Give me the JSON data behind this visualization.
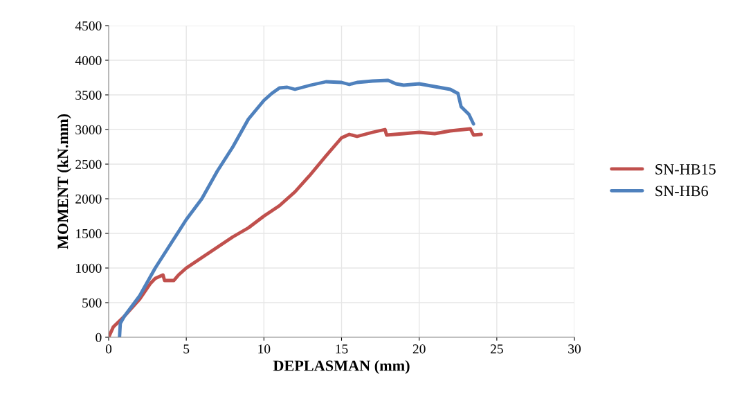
{
  "chart_data": {
    "type": "line",
    "xlabel": "DEPLASMAN (mm)",
    "ylabel": "MOMENT (kN.mm)",
    "xlim": [
      0,
      30
    ],
    "xticks": [
      0,
      5,
      10,
      15,
      20,
      25,
      30
    ],
    "ylim": [
      0,
      4500
    ],
    "yticks": [
      0,
      500,
      1000,
      1500,
      2000,
      2500,
      3000,
      3500,
      4000,
      4500
    ],
    "grid": true,
    "legend": "right",
    "marker": "none",
    "line_style": "solid",
    "series": [
      {
        "name": "SN-HB15",
        "color": "#c0504d",
        "x": [
          0,
          0.3,
          1,
          2,
          2.7,
          3.0,
          3.5,
          3.6,
          4.2,
          4.5,
          5,
          6,
          7,
          8,
          9,
          10,
          11,
          12,
          13,
          14,
          15,
          15.5,
          16,
          17,
          17.8,
          17.9,
          19,
          20,
          21,
          22,
          23.3,
          23.5,
          24
        ],
        "values": [
          0,
          150,
          300,
          550,
          780,
          850,
          900,
          820,
          820,
          900,
          1000,
          1150,
          1300,
          1450,
          1580,
          1750,
          1900,
          2100,
          2350,
          2620,
          2880,
          2930,
          2900,
          2960,
          3000,
          2920,
          2940,
          2960,
          2940,
          2980,
          3010,
          2920,
          2930
        ]
      },
      {
        "name": "SN-HB6",
        "color": "#4f81bd",
        "x": [
          0.7,
          0.75,
          1,
          2,
          3,
          4,
          5,
          6,
          7,
          8,
          9,
          10,
          10.5,
          11,
          11.5,
          12,
          13,
          14,
          15,
          15.5,
          16,
          17,
          18,
          18.5,
          19,
          20,
          21,
          22,
          22.5,
          22.7,
          23.2,
          23.5
        ],
        "values": [
          0,
          200,
          300,
          600,
          1000,
          1350,
          1700,
          2000,
          2400,
          2750,
          3150,
          3420,
          3520,
          3600,
          3610,
          3580,
          3640,
          3690,
          3680,
          3650,
          3680,
          3700,
          3710,
          3660,
          3640,
          3660,
          3620,
          3580,
          3520,
          3330,
          3220,
          3080
        ]
      }
    ]
  }
}
